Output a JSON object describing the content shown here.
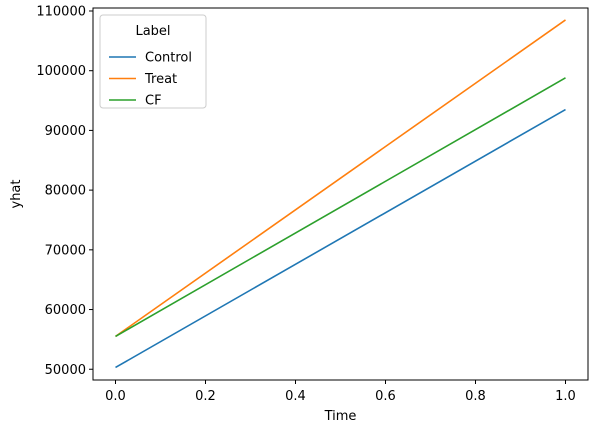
{
  "chart_data": {
    "type": "line",
    "title": "",
    "xlabel": "Time",
    "ylabel": "yhat",
    "xlim": [
      -0.05,
      1.05
    ],
    "ylim": [
      48200,
      110500
    ],
    "xticks": [
      0.0,
      0.2,
      0.4,
      0.6,
      0.8,
      1.0
    ],
    "xtick_labels": [
      "0.0",
      "0.2",
      "0.4",
      "0.6",
      "0.8",
      "1.0"
    ],
    "yticks": [
      50000,
      60000,
      70000,
      80000,
      90000,
      100000,
      110000
    ],
    "ytick_labels": [
      "50000",
      "60000",
      "70000",
      "80000",
      "90000",
      "100000",
      "110000"
    ],
    "grid": false,
    "legend": {
      "title": "Label",
      "position": "top-left"
    },
    "series": [
      {
        "name": "Control",
        "color": "#1f77b4",
        "x": [
          0.0,
          1.0
        ],
        "y": [
          50300,
          93500
        ]
      },
      {
        "name": "Treat",
        "color": "#ff7f0e",
        "x": [
          0.0,
          1.0
        ],
        "y": [
          55500,
          108500
        ]
      },
      {
        "name": "CF",
        "color": "#2ca02c",
        "x": [
          0.0,
          1.0
        ],
        "y": [
          55500,
          98800
        ]
      }
    ]
  }
}
